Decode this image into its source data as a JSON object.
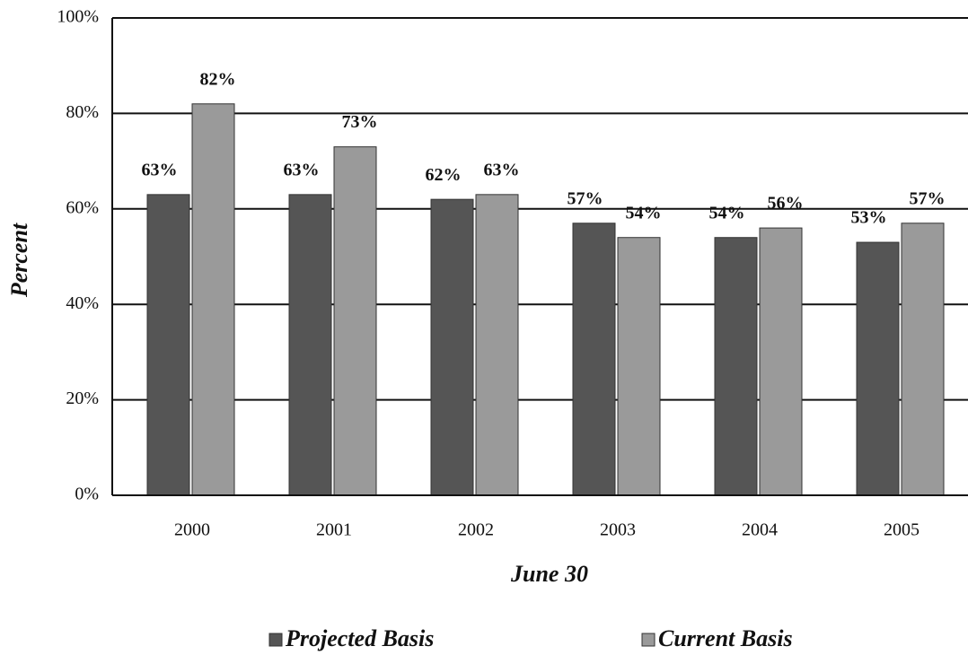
{
  "chart_data": {
    "type": "bar",
    "x_label": "June 30",
    "y_label": "Percent",
    "categories": [
      "2000",
      "2001",
      "2002",
      "2003",
      "2004",
      "2005"
    ],
    "series": [
      {
        "name": "Projected Basis",
        "color": "#555555",
        "values": [
          63,
          63,
          62,
          57,
          54,
          53
        ],
        "value_labels": [
          "63%",
          "63%",
          "62%",
          "57%",
          "54%",
          "53%"
        ]
      },
      {
        "name": "Current Basis",
        "color": "#9a9a9a",
        "values": [
          82,
          73,
          63,
          54,
          56,
          57
        ],
        "value_labels": [
          "82%",
          "73%",
          "63%",
          "54%",
          "56%",
          "57%"
        ]
      }
    ],
    "ylim": [
      0,
      100
    ],
    "yticks": [
      {
        "value": 0,
        "label": "0%"
      },
      {
        "value": 20,
        "label": "20%"
      },
      {
        "value": 40,
        "label": "40%"
      },
      {
        "value": 60,
        "label": "60%"
      },
      {
        "value": 80,
        "label": "80%"
      },
      {
        "value": 100,
        "label": "100%"
      }
    ],
    "grid": true
  }
}
